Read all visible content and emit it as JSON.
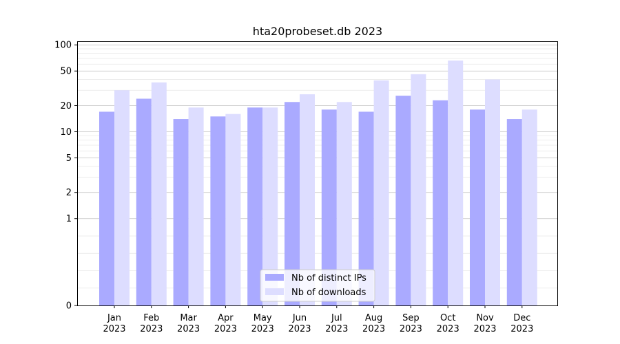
{
  "chart_data": {
    "type": "bar",
    "title": "hta20probeset.db 2023",
    "xlabel": "",
    "ylabel": "",
    "y_scale": "symlog",
    "ylim": [
      0,
      110
    ],
    "yticks": [
      0,
      1,
      2,
      5,
      10,
      20,
      50,
      100
    ],
    "categories": [
      "Jan\n2023",
      "Feb\n2023",
      "Mar\n2023",
      "Apr\n2023",
      "May\n2023",
      "Jun\n2023",
      "Jul\n2023",
      "Aug\n2023",
      "Sep\n2023",
      "Oct\n2023",
      "Nov\n2023",
      "Dec\n2023"
    ],
    "category_lines": [
      [
        "Jan",
        "2023"
      ],
      [
        "Feb",
        "2023"
      ],
      [
        "Mar",
        "2023"
      ],
      [
        "Apr",
        "2023"
      ],
      [
        "May",
        "2023"
      ],
      [
        "Jun",
        "2023"
      ],
      [
        "Jul",
        "2023"
      ],
      [
        "Aug",
        "2023"
      ],
      [
        "Sep",
        "2023"
      ],
      [
        "Oct",
        "2023"
      ],
      [
        "Nov",
        "2023"
      ],
      [
        "Dec",
        "2023"
      ]
    ],
    "series": [
      {
        "name": "Nb of distinct IPs",
        "color": "#aaaaff",
        "values": [
          17,
          24,
          14,
          15,
          19,
          22,
          18,
          17,
          26,
          23,
          18,
          14
        ]
      },
      {
        "name": "Nb of downloads",
        "color": "#ddddff",
        "values": [
          30,
          37,
          19,
          16,
          19,
          27,
          22,
          39,
          46,
          66,
          40,
          18
        ]
      }
    ],
    "grid": true,
    "legend_position": "lower-center"
  }
}
